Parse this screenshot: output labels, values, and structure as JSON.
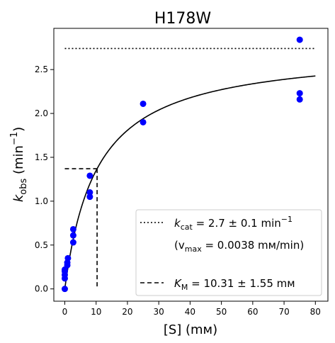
{
  "chart_data": {
    "type": "scatter",
    "title": "H178W",
    "xlabel": "[S] (mм)",
    "ylabel": "k_obs (min⁻¹)",
    "xlim": [
      -3.5,
      84
    ],
    "ylim": [
      -0.14,
      2.97
    ],
    "x_ticks": [
      0,
      10,
      20,
      30,
      40,
      50,
      60,
      70,
      80
    ],
    "x_tick_labels": [
      "0",
      "10",
      "20",
      "30",
      "40",
      "50",
      "60",
      "70",
      "80"
    ],
    "y_ticks": [
      0.0,
      0.5,
      1.0,
      1.5,
      2.0,
      2.5
    ],
    "y_tick_labels": [
      "0.0",
      "0.5",
      "1.0",
      "1.5",
      "2.0",
      "2.5"
    ],
    "grid": false,
    "points": {
      "color": "#0000ff",
      "x": [
        0,
        0,
        0,
        0,
        0,
        0.8,
        0.8,
        1,
        2.7,
        2.7,
        2.7,
        8,
        8,
        8,
        25,
        25,
        75,
        75,
        75
      ],
      "y": [
        0.0,
        0.12,
        0.16,
        0.2,
        0.22,
        0.27,
        0.3,
        0.35,
        0.53,
        0.61,
        0.68,
        1.05,
        1.1,
        1.29,
        1.9,
        2.11,
        2.16,
        2.23,
        2.84
      ]
    },
    "fit_curve": {
      "kcat": 2.74,
      "km": 10.31,
      "x_range": [
        0,
        80
      ],
      "color": "#000000"
    },
    "kcat_line": {
      "y": 2.74,
      "x_range": [
        0,
        80
      ],
      "style": "dotted"
    },
    "km_lines": {
      "x": 10.31,
      "y": 1.37,
      "style": "dashed"
    },
    "legend": {
      "placement": "lower-right",
      "entries": [
        {
          "style": "dotted",
          "text_k": "k",
          "text_sub": "cat",
          "text_rest": " = 2.7 ± 0.1 min",
          "text_sup": "−1"
        },
        {
          "style": "none",
          "text_pre": "(v",
          "text_sub": "max",
          "text_rest": " = 0.0038 mм/min)"
        },
        {
          "style": "dashed",
          "text_k": "K",
          "text_sub": "M",
          "text_rest": " = 10.31 ± 1.55 mм"
        }
      ]
    }
  }
}
